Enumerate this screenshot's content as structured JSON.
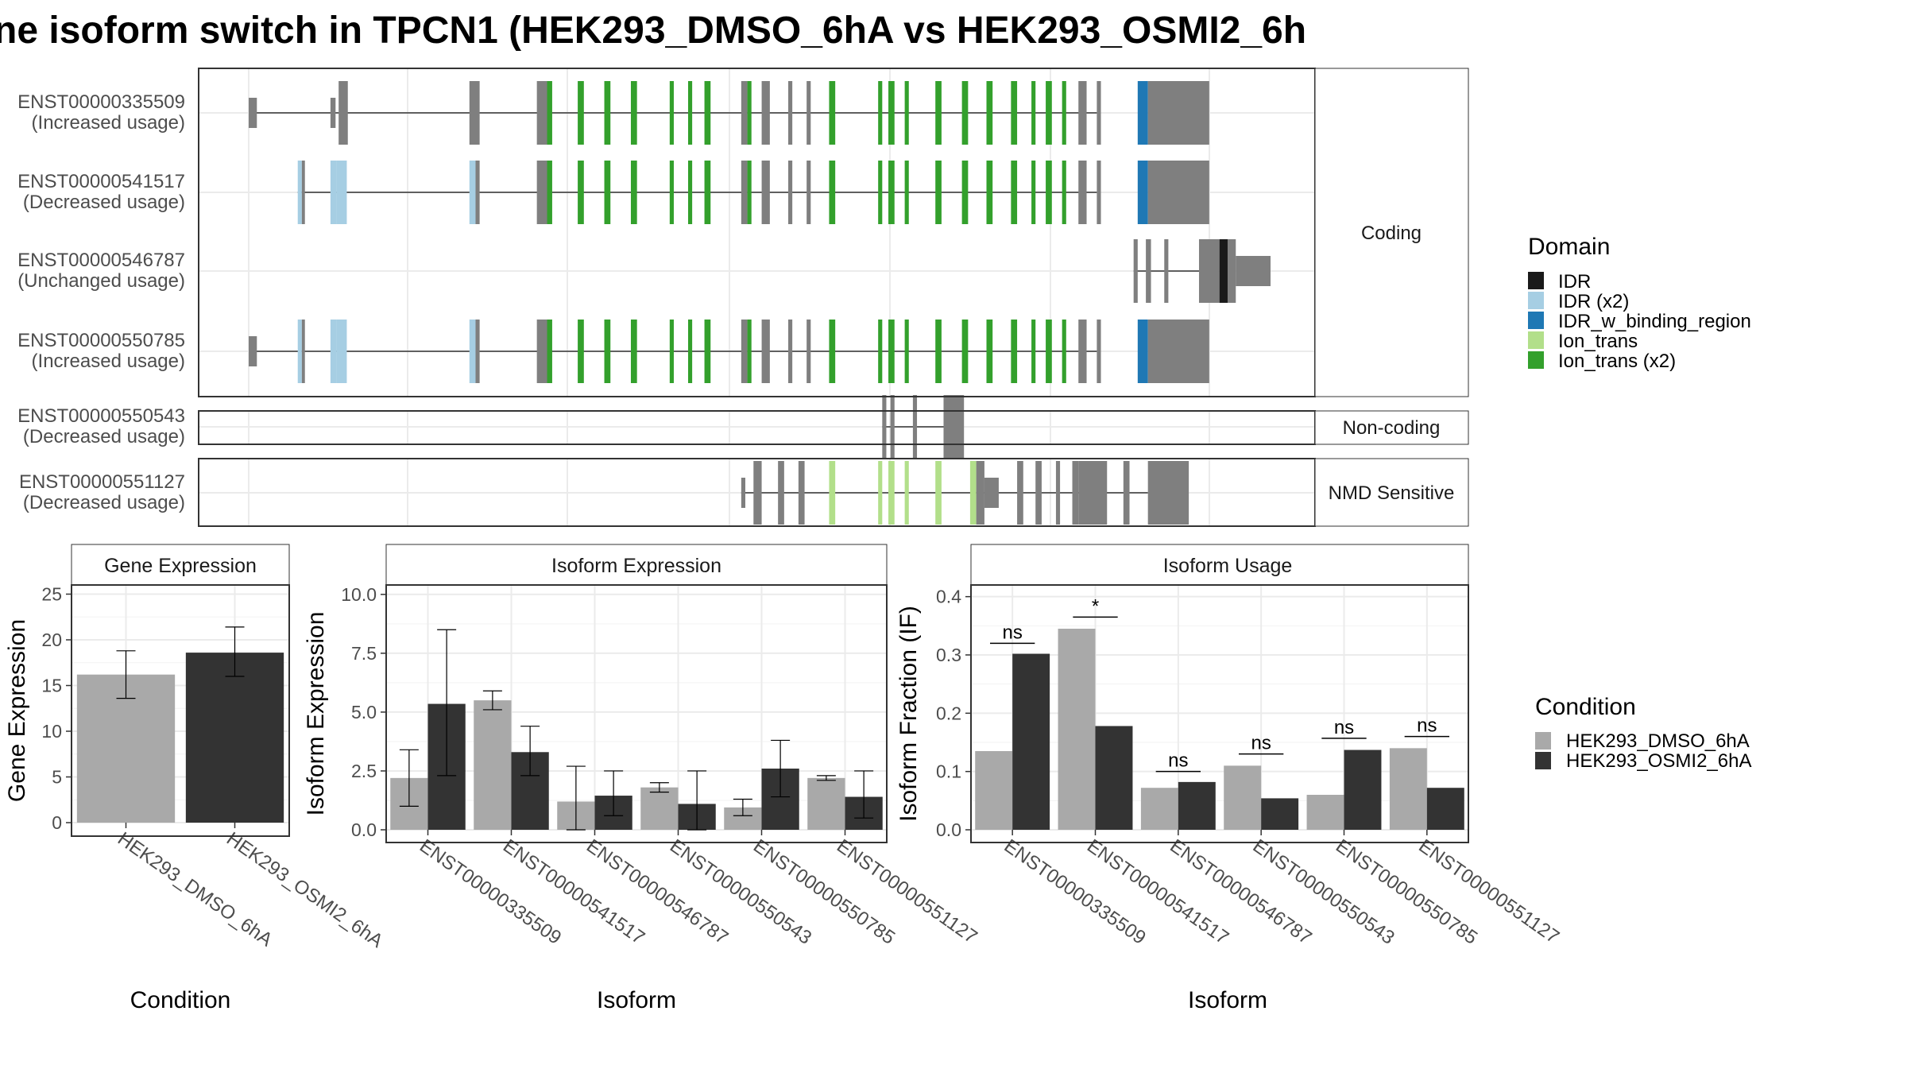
{
  "title": "ne isoform switch in TPCN1 (HEK293_DMSO_6hA vs HEK293_OSMI2_6h",
  "colors": {
    "exon": "#7f7f7f",
    "IDR": "#1a1a1a",
    "IDR (x2)": "#a6cee3",
    "IDR_w_binding_region": "#1f78b4",
    "Ion_trans": "#b2df8a",
    "Ion_trans (x2)": "#33a02c",
    "dmso": "#a9a9a9",
    "osmi": "#333333"
  },
  "structure": {
    "type": "gene_structure",
    "coordinate_range": [
      0,
      1000
    ],
    "panels": [
      {
        "label": "Coding",
        "isoforms": [
          {
            "id": "ENST00000335509",
            "usage": "(Increased usage)",
            "intron": [
              0,
              830
            ],
            "exons": [
              [
                0,
                8,
                "exon",
                "t"
              ],
              [
                80,
                85,
                "exon",
                "t"
              ],
              [
                88,
                97,
                "exon"
              ],
              [
                216,
                226,
                "exon"
              ],
              [
                282,
                292,
                "exon"
              ],
              [
                292,
                297,
                "Ion_trans (x2)"
              ],
              [
                322,
                328,
                "Ion_trans (x2)"
              ],
              [
                348,
                354,
                "Ion_trans (x2)"
              ],
              [
                374,
                380,
                "Ion_trans (x2)"
              ],
              [
                412,
                416,
                "Ion_trans (x2)"
              ],
              [
                430,
                434,
                "Ion_trans (x2)"
              ],
              [
                446,
                452,
                "Ion_trans (x2)"
              ],
              [
                482,
                488,
                "exon"
              ],
              [
                488,
                492,
                "Ion_trans (x2)"
              ],
              [
                502,
                510,
                "exon"
              ],
              [
                528,
                532,
                "exon"
              ],
              [
                546,
                550,
                "exon"
              ],
              [
                568,
                574,
                "Ion_trans (x2)"
              ],
              [
                616,
                620,
                "Ion_trans (x2)"
              ],
              [
                626,
                632,
                "Ion_trans (x2)"
              ],
              [
                642,
                646,
                "Ion_trans (x2)"
              ],
              [
                672,
                678,
                "Ion_trans (x2)"
              ],
              [
                698,
                704,
                "Ion_trans (x2)"
              ],
              [
                722,
                728,
                "Ion_trans (x2)"
              ],
              [
                746,
                752,
                "Ion_trans (x2)"
              ],
              [
                766,
                770,
                "Ion_trans (x2)"
              ],
              [
                780,
                786,
                "Ion_trans (x2)"
              ],
              [
                796,
                800,
                "Ion_trans (x2)"
              ],
              [
                812,
                820,
                "exon"
              ],
              [
                830,
                834,
                "exon"
              ],
              [
                870,
                880,
                "IDR_w_binding_region"
              ],
              [
                880,
                940,
                "exon"
              ]
            ]
          },
          {
            "id": "ENST00000541517",
            "usage": "(Decreased usage)",
            "intron": [
              48,
              830
            ],
            "exons": [
              [
                48,
                52,
                "IDR (x2)"
              ],
              [
                52,
                55,
                "exon"
              ],
              [
                80,
                86,
                "IDR (x2)"
              ],
              [
                86,
                96,
                "IDR (x2)"
              ],
              [
                216,
                222,
                "IDR (x2)"
              ],
              [
                222,
                226,
                "exon"
              ],
              [
                282,
                292,
                "exon"
              ],
              [
                292,
                297,
                "Ion_trans (x2)"
              ],
              [
                322,
                328,
                "Ion_trans (x2)"
              ],
              [
                348,
                354,
                "Ion_trans (x2)"
              ],
              [
                374,
                380,
                "Ion_trans (x2)"
              ],
              [
                412,
                416,
                "Ion_trans (x2)"
              ],
              [
                430,
                434,
                "Ion_trans (x2)"
              ],
              [
                446,
                452,
                "Ion_trans (x2)"
              ],
              [
                482,
                488,
                "exon"
              ],
              [
                488,
                492,
                "Ion_trans (x2)"
              ],
              [
                502,
                510,
                "exon"
              ],
              [
                528,
                532,
                "exon"
              ],
              [
                546,
                550,
                "exon"
              ],
              [
                568,
                574,
                "Ion_trans (x2)"
              ],
              [
                616,
                620,
                "Ion_trans (x2)"
              ],
              [
                626,
                632,
                "Ion_trans (x2)"
              ],
              [
                642,
                646,
                "Ion_trans (x2)"
              ],
              [
                672,
                678,
                "Ion_trans (x2)"
              ],
              [
                698,
                704,
                "Ion_trans (x2)"
              ],
              [
                722,
                728,
                "Ion_trans (x2)"
              ],
              [
                746,
                752,
                "Ion_trans (x2)"
              ],
              [
                766,
                770,
                "Ion_trans (x2)"
              ],
              [
                780,
                786,
                "Ion_trans (x2)"
              ],
              [
                796,
                800,
                "Ion_trans (x2)"
              ],
              [
                812,
                820,
                "exon"
              ],
              [
                830,
                834,
                "exon"
              ],
              [
                870,
                880,
                "IDR_w_binding_region"
              ],
              [
                880,
                940,
                "exon"
              ]
            ]
          },
          {
            "id": "ENST00000546787",
            "usage": "(Unchanged usage)",
            "intron": [
              866,
              940
            ],
            "exons": [
              [
                866,
                870,
                "exon"
              ],
              [
                878,
                883,
                "exon"
              ],
              [
                896,
                900,
                "exon"
              ],
              [
                870,
                905,
                "exon",
                "n"
              ],
              [
                930,
                950,
                "exon"
              ],
              [
                950,
                958,
                "IDR"
              ],
              [
                958,
                966,
                "exon"
              ],
              [
                966,
                1000,
                "exon",
                "t"
              ]
            ]
          },
          {
            "id": "ENST00000550785",
            "usage": "(Increased usage)",
            "intron": [
              0,
              830
            ],
            "exons": [
              [
                0,
                8,
                "exon",
                "t"
              ],
              [
                48,
                52,
                "IDR (x2)"
              ],
              [
                52,
                55,
                "exon"
              ],
              [
                80,
                86,
                "IDR (x2)"
              ],
              [
                86,
                96,
                "IDR (x2)"
              ],
              [
                216,
                222,
                "IDR (x2)"
              ],
              [
                222,
                226,
                "exon"
              ],
              [
                282,
                292,
                "exon"
              ],
              [
                292,
                297,
                "Ion_trans (x2)"
              ],
              [
                322,
                328,
                "Ion_trans (x2)"
              ],
              [
                348,
                354,
                "Ion_trans (x2)"
              ],
              [
                374,
                380,
                "Ion_trans (x2)"
              ],
              [
                412,
                416,
                "Ion_trans (x2)"
              ],
              [
                430,
                434,
                "Ion_trans (x2)"
              ],
              [
                446,
                452,
                "Ion_trans (x2)"
              ],
              [
                482,
                488,
                "exon"
              ],
              [
                488,
                492,
                "Ion_trans (x2)"
              ],
              [
                502,
                510,
                "exon"
              ],
              [
                528,
                532,
                "exon"
              ],
              [
                546,
                550,
                "exon"
              ],
              [
                568,
                574,
                "Ion_trans (x2)"
              ],
              [
                616,
                620,
                "Ion_trans (x2)"
              ],
              [
                626,
                632,
                "Ion_trans (x2)"
              ],
              [
                642,
                646,
                "Ion_trans (x2)"
              ],
              [
                672,
                678,
                "Ion_trans (x2)"
              ],
              [
                698,
                704,
                "Ion_trans (x2)"
              ],
              [
                722,
                728,
                "Ion_trans (x2)"
              ],
              [
                746,
                752,
                "Ion_trans (x2)"
              ],
              [
                766,
                770,
                "Ion_trans (x2)"
              ],
              [
                780,
                786,
                "Ion_trans (x2)"
              ],
              [
                796,
                800,
                "Ion_trans (x2)"
              ],
              [
                812,
                820,
                "exon"
              ],
              [
                830,
                834,
                "exon"
              ],
              [
                870,
                880,
                "IDR_w_binding_region"
              ],
              [
                880,
                940,
                "exon"
              ]
            ]
          }
        ]
      },
      {
        "label": "Non-coding",
        "isoforms": [
          {
            "id": "ENST00000550543",
            "usage": "(Decreased usage)",
            "intron": [
              620,
              690
            ],
            "exons": [
              [
                620,
                624,
                "exon"
              ],
              [
                628,
                632,
                "exon"
              ],
              [
                650,
                654,
                "exon"
              ],
              [
                680,
                700,
                "exon"
              ]
            ]
          }
        ]
      },
      {
        "label": "NMD Sensitive",
        "isoforms": [
          {
            "id": "ENST00000551127",
            "usage": "(Decreased usage)",
            "intron": [
              482,
              880
            ],
            "exons": [
              [
                482,
                486,
                "exon",
                "t"
              ],
              [
                494,
                502,
                "exon"
              ],
              [
                518,
                524,
                "exon"
              ],
              [
                538,
                544,
                "exon"
              ],
              [
                568,
                574,
                "Ion_trans"
              ],
              [
                616,
                620,
                "Ion_trans"
              ],
              [
                626,
                632,
                "Ion_trans"
              ],
              [
                642,
                646,
                "Ion_trans"
              ],
              [
                672,
                678,
                "Ion_trans"
              ],
              [
                706,
                712,
                "Ion_trans"
              ],
              [
                712,
                720,
                "exon"
              ],
              [
                720,
                734,
                "exon",
                "t"
              ],
              [
                752,
                758,
                "exon"
              ],
              [
                770,
                776,
                "exon"
              ],
              [
                790,
                794,
                "exon"
              ],
              [
                806,
                812,
                "exon"
              ],
              [
                812,
                840,
                "exon"
              ],
              [
                856,
                862,
                "exon"
              ],
              [
                880,
                920,
                "exon"
              ]
            ]
          }
        ]
      }
    ],
    "legend": {
      "title": "Domain",
      "items": [
        "IDR",
        "IDR (x2)",
        "IDR_w_binding_region",
        "Ion_trans",
        "Ion_trans (x2)"
      ]
    }
  },
  "chart_data": [
    {
      "type": "bar",
      "title": "Gene Expression",
      "xlabel": "Condition",
      "ylabel": "Gene Expression",
      "ylim": [
        0,
        26
      ],
      "yticks": [
        "0",
        "5",
        "10",
        "15",
        "20",
        "25"
      ],
      "categories": [
        "HEK293_DMSO_6hA",
        "HEK293_OSMI2_6hA"
      ],
      "values": [
        16.2,
        18.6
      ],
      "errors": [
        [
          13.6,
          18.8
        ],
        [
          16.0,
          21.4
        ]
      ]
    },
    {
      "type": "bar",
      "title": "Isoform Expression",
      "xlabel": "Isoform",
      "ylabel": "Isoform Expression",
      "ylim": [
        0,
        10.4
      ],
      "yticks": [
        "0.0",
        "2.5",
        "5.0",
        "7.5",
        "10.0"
      ],
      "categories": [
        "ENST00000335509",
        "ENST00000541517",
        "ENST00000546787",
        "ENST00000550543",
        "ENST00000550785",
        "ENST00000551127"
      ],
      "series": [
        {
          "name": "HEK293_DMSO_6hA",
          "values": [
            2.2,
            5.5,
            1.2,
            1.8,
            0.95,
            2.2
          ],
          "errors": [
            [
              1.0,
              3.4
            ],
            [
              5.1,
              5.9
            ],
            [
              0.0,
              2.7
            ],
            [
              1.6,
              2.0
            ],
            [
              0.6,
              1.3
            ],
            [
              2.1,
              2.3
            ]
          ]
        },
        {
          "name": "HEK293_OSMI2_6hA",
          "values": [
            5.35,
            3.3,
            1.45,
            1.1,
            2.6,
            1.4
          ],
          "errors": [
            [
              2.3,
              8.5
            ],
            [
              2.3,
              4.4
            ],
            [
              0.6,
              2.5
            ],
            [
              0.0,
              2.5
            ],
            [
              1.4,
              3.8
            ],
            [
              0.5,
              2.5
            ]
          ]
        }
      ]
    },
    {
      "type": "bar",
      "title": "Isoform Usage",
      "xlabel": "Isoform",
      "ylabel": "Isoform Fraction (IF)",
      "ylim": [
        0,
        0.42
      ],
      "yticks": [
        "0.0",
        "0.1",
        "0.2",
        "0.3",
        "0.4"
      ],
      "categories": [
        "ENST00000335509",
        "ENST00000541517",
        "ENST00000546787",
        "ENST00000550543",
        "ENST00000550785",
        "ENST00000551127"
      ],
      "series": [
        {
          "name": "HEK293_DMSO_6hA",
          "values": [
            0.135,
            0.345,
            0.072,
            0.11,
            0.06,
            0.14
          ]
        },
        {
          "name": "HEK293_OSMI2_6hA",
          "values": [
            0.302,
            0.178,
            0.082,
            0.054,
            0.137,
            0.072
          ]
        }
      ],
      "significance": [
        {
          "label": "ns",
          "y": 0.32
        },
        {
          "label": "*",
          "y": 0.365
        },
        {
          "label": "ns",
          "y": 0.1
        },
        {
          "label": "ns",
          "y": 0.13
        },
        {
          "label": "ns",
          "y": 0.157
        },
        {
          "label": "ns",
          "y": 0.16
        }
      ]
    }
  ],
  "condition_legend": {
    "title": "Condition",
    "items": [
      "HEK293_DMSO_6hA",
      "HEK293_OSMI2_6hA"
    ]
  }
}
